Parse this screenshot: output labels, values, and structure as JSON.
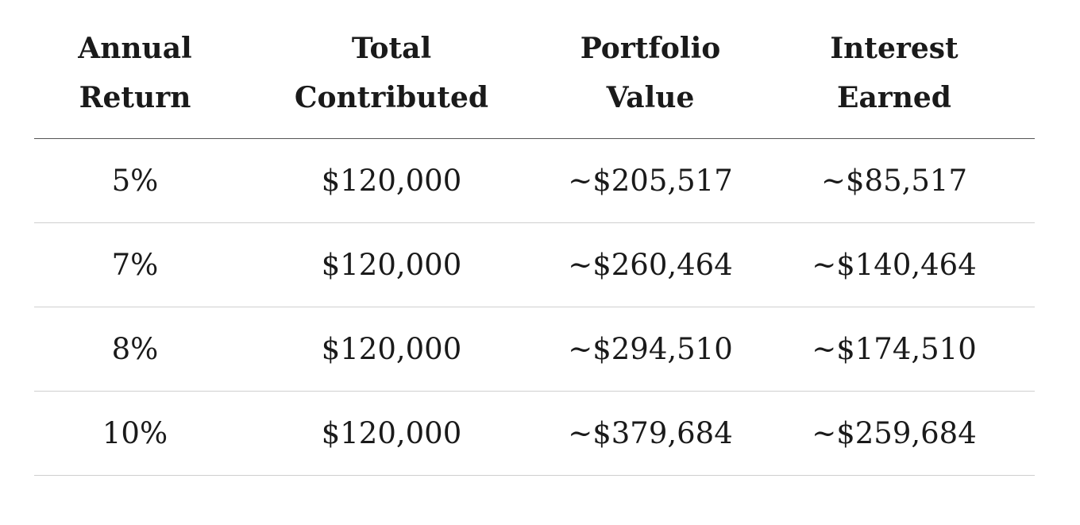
{
  "table": {
    "headers": [
      {
        "line1": "Annual",
        "line2": "Return"
      },
      {
        "line1": "Total",
        "line2": "Contributed"
      },
      {
        "line1": "Portfolio",
        "line2": "Value"
      },
      {
        "line1": "Interest",
        "line2": "Earned"
      }
    ],
    "rows": [
      [
        "5%",
        "$120,000",
        "~$205,517",
        "~$85,517"
      ],
      [
        "7%",
        "$120,000",
        "~$260,464",
        "~$140,464"
      ],
      [
        "8%",
        "$120,000",
        "~$294,510",
        "~$174,510"
      ],
      [
        "10%",
        "$120,000",
        "~$379,684",
        "~$259,684"
      ]
    ]
  },
  "colors": {
    "text": "#1a1a1a",
    "header_rule": "#555555",
    "row_rule": "#cfcfcf"
  }
}
